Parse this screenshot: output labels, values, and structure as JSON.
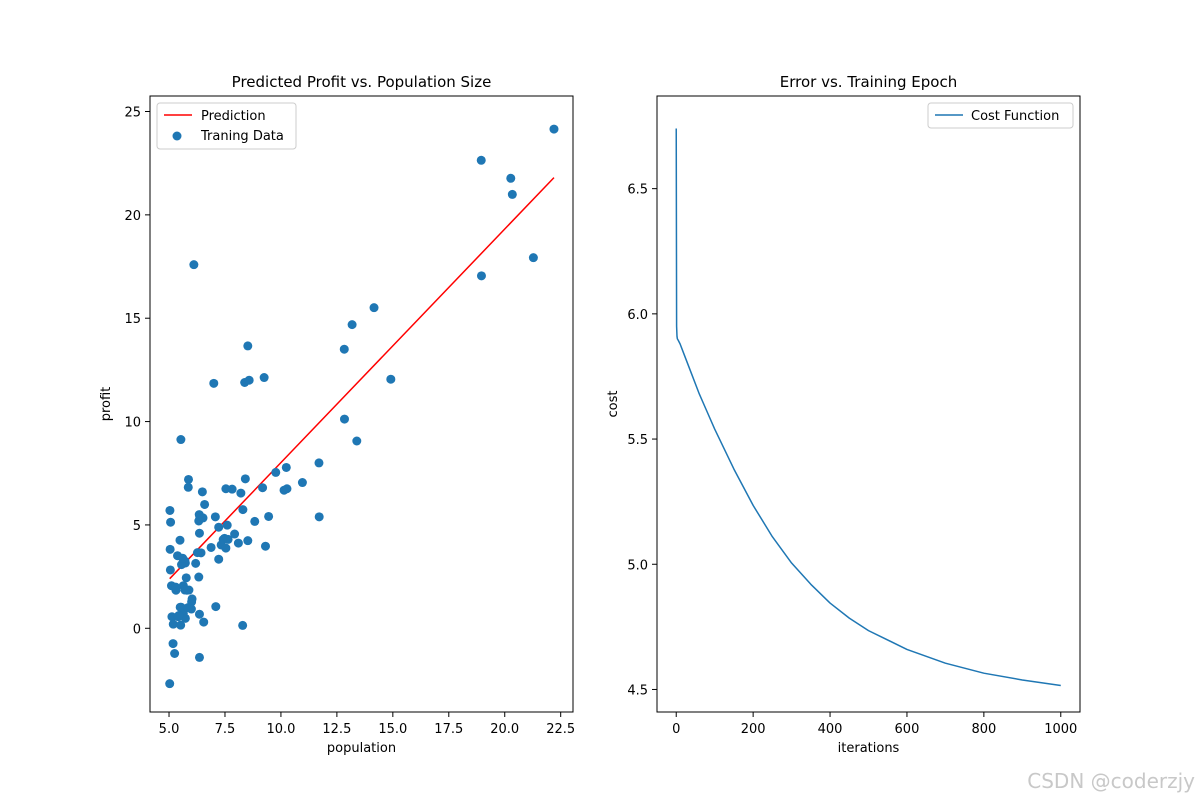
{
  "watermark": "CSDN @coderzjy",
  "chart_data": [
    {
      "type": "scatter",
      "title": "Predicted Profit vs. Population Size",
      "xlabel": "population",
      "ylabel": "profit",
      "xlim": [
        4.15,
        23.05
      ],
      "ylim": [
        -4.05,
        25.75
      ],
      "xticks": [
        5.0,
        7.5,
        10.0,
        12.5,
        15.0,
        17.5,
        20.0,
        22.5
      ],
      "xtick_labels": [
        "5.0",
        "7.5",
        "10.0",
        "12.5",
        "15.0",
        "17.5",
        "20.0",
        "22.5"
      ],
      "yticks": [
        0,
        5,
        10,
        15,
        20,
        25
      ],
      "ytick_labels": [
        "0",
        "5",
        "10",
        "15",
        "20",
        "25"
      ],
      "legend_position": "top-left",
      "line_color": "#ff0000",
      "point_color": "#1f77b4",
      "series": [
        {
          "name": "Prediction",
          "kind": "line",
          "x": [
            5.03,
            22.2
          ],
          "y": [
            2.4,
            21.8
          ]
        },
        {
          "name": "Traning Data",
          "kind": "scatter",
          "points": [
            [
              6.11,
              17.59
            ],
            [
              5.53,
              9.13
            ],
            [
              8.52,
              13.66
            ],
            [
              7.0,
              11.85
            ],
            [
              5.86,
              6.82
            ],
            [
              8.38,
              11.89
            ],
            [
              7.48,
              4.35
            ],
            [
              8.58,
              12.0
            ],
            [
              6.49,
              6.6
            ],
            [
              5.05,
              3.82
            ],
            [
              5.71,
              3.25
            ],
            [
              14.16,
              15.51
            ],
            [
              5.73,
              3.16
            ],
            [
              8.41,
              7.23
            ],
            [
              5.64,
              0.72
            ],
            [
              5.38,
              3.51
            ],
            [
              6.37,
              5.3
            ],
            [
              5.13,
              0.56
            ],
            [
              6.43,
              3.65
            ],
            [
              7.07,
              5.39
            ],
            [
              6.19,
              3.14
            ],
            [
              20.27,
              21.77
            ],
            [
              5.49,
              4.26
            ],
            [
              6.33,
              5.19
            ],
            [
              5.56,
              3.08
            ],
            [
              18.95,
              22.64
            ],
            [
              12.83,
              13.5
            ],
            [
              10.96,
              7.05
            ],
            [
              13.18,
              14.69
            ],
            [
              22.2,
              24.15
            ],
            [
              5.25,
              -1.22
            ],
            [
              6.59,
              5.99
            ],
            [
              9.25,
              12.13
            ],
            [
              5.89,
              1.85
            ],
            [
              8.21,
              6.54
            ],
            [
              7.93,
              4.56
            ],
            [
              8.1,
              4.12
            ],
            [
              5.61,
              3.39
            ],
            [
              12.84,
              10.12
            ],
            [
              6.35,
              5.5
            ],
            [
              5.41,
              0.56
            ],
            [
              6.88,
              3.91
            ],
            [
              11.71,
              5.39
            ],
            [
              5.77,
              2.44
            ],
            [
              7.82,
              6.73
            ],
            [
              7.09,
              1.05
            ],
            [
              5.07,
              5.13
            ],
            [
              5.8,
              1.84
            ],
            [
              11.7,
              8.0
            ],
            [
              5.54,
              1.02
            ],
            [
              7.54,
              6.75
            ],
            [
              5.31,
              1.84
            ],
            [
              7.42,
              4.29
            ],
            [
              7.6,
              4.99
            ],
            [
              6.03,
              1.42
            ],
            [
              6.33,
              2.48
            ],
            [
              6.36,
              4.6
            ],
            [
              6.27,
              3.66
            ],
            [
              5.64,
              2.06
            ],
            [
              9.31,
              3.97
            ],
            [
              9.45,
              5.41
            ],
            [
              8.83,
              5.17
            ],
            [
              5.18,
              -0.74
            ],
            [
              21.28,
              17.93
            ],
            [
              14.91,
              12.05
            ],
            [
              18.96,
              17.05
            ],
            [
              7.22,
              4.89
            ],
            [
              8.3,
              5.74
            ],
            [
              10.24,
              7.78
            ],
            [
              5.5,
              1.02
            ],
            [
              20.34,
              20.99
            ],
            [
              10.14,
              6.68
            ],
            [
              7.33,
              4.03
            ],
            [
              6.01,
              1.28
            ],
            [
              7.22,
              3.34
            ],
            [
              5.03,
              -2.68
            ],
            [
              6.55,
              0.3
            ],
            [
              7.54,
              3.88
            ],
            [
              5.04,
              5.7
            ],
            [
              10.27,
              6.75
            ],
            [
              5.11,
              2.06
            ],
            [
              5.73,
              0.48
            ],
            [
              5.19,
              0.2
            ],
            [
              6.36,
              0.68
            ],
            [
              9.77,
              7.54
            ],
            [
              6.52,
              5.34
            ],
            [
              8.52,
              4.24
            ],
            [
              9.18,
              6.8
            ],
            [
              6.0,
              0.93
            ],
            [
              5.52,
              0.15
            ],
            [
              5.06,
              2.82
            ],
            [
              5.71,
              1.85
            ],
            [
              7.64,
              4.3
            ],
            [
              5.87,
              7.2
            ],
            [
              5.3,
              1.99
            ],
            [
              8.29,
              0.14
            ],
            [
              13.39,
              9.06
            ],
            [
              5.44,
              0.62
            ],
            [
              6.36,
              -1.41
            ],
            [
              5.85,
              1.0
            ]
          ]
        }
      ]
    },
    {
      "type": "line",
      "title": "Error vs. Training Epoch",
      "xlabel": "iterations",
      "ylabel": "cost",
      "xlim": [
        -50,
        1050
      ],
      "ylim": [
        4.41,
        6.87
      ],
      "xticks": [
        0,
        200,
        400,
        600,
        800,
        1000
      ],
      "xtick_labels": [
        "0",
        "200",
        "400",
        "600",
        "800",
        "1000"
      ],
      "yticks": [
        4.5,
        5.0,
        5.5,
        6.0,
        6.5
      ],
      "ytick_labels": [
        "4.5",
        "5.0",
        "5.5",
        "6.0",
        "6.5"
      ],
      "legend_position": "top-right",
      "line_color": "#1f77b4",
      "series": [
        {
          "name": "Cost Function",
          "x": [
            0,
            1,
            2,
            3,
            5,
            10,
            20,
            40,
            60,
            80,
            100,
            150,
            200,
            250,
            300,
            350,
            400,
            450,
            500,
            600,
            700,
            800,
            900,
            1000
          ],
          "y": [
            6.74,
            5.95,
            5.91,
            5.9,
            5.895,
            5.88,
            5.84,
            5.76,
            5.68,
            5.61,
            5.54,
            5.38,
            5.235,
            5.11,
            5.005,
            4.92,
            4.845,
            4.785,
            4.735,
            4.66,
            4.605,
            4.565,
            4.538,
            4.516
          ]
        }
      ]
    }
  ]
}
